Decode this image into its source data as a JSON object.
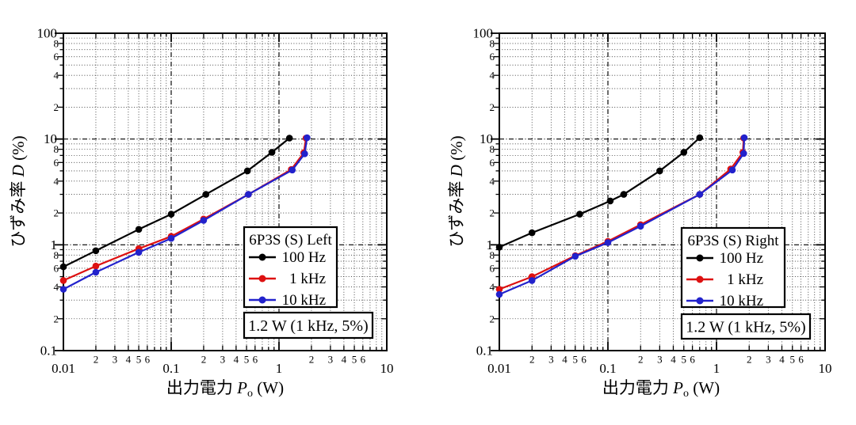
{
  "figure": {
    "background": "#ffffff",
    "axis_tick_labels": {
      "x_major": [
        "0.01",
        "0.1",
        "1",
        "10"
      ],
      "x_minor": [
        "2",
        "3",
        "4",
        "5",
        "6"
      ],
      "y_major": [
        "0.1",
        "1",
        "10",
        "100"
      ],
      "y_minor": [
        "2",
        "4",
        "6",
        "8"
      ]
    },
    "xlabel": {
      "cjk": "出力電力",
      "var": "P",
      "sub": "o",
      "unit": "(W)"
    },
    "ylabel": {
      "cjk": "ひずみ率",
      "var": "D",
      "unit": "(%)"
    },
    "series_colors": {
      "100hz": "#000000",
      "1khz": "#dd1111",
      "10khz": "#2222cc"
    }
  },
  "chart_data": [
    {
      "type": "line",
      "title": "6P3S (S) Left",
      "legend_title": "6P3S (S) Left",
      "annotation": "1.2 W (1 kHz, 5%)",
      "xlabel": "出力電力 Po (W)",
      "ylabel": "ひずみ率 D (%)",
      "xscale": "log",
      "yscale": "log",
      "xlim": [
        0.01,
        10
      ],
      "ylim": [
        0.1,
        100
      ],
      "grid": true,
      "legend_position": "lower right",
      "series": [
        {
          "name": "100 Hz",
          "color": "#000000",
          "points": [
            [
              0.01,
              0.62
            ],
            [
              0.02,
              0.88
            ],
            [
              0.05,
              1.4
            ],
            [
              0.1,
              1.95
            ],
            [
              0.21,
              3.0
            ],
            [
              0.51,
              5.0
            ],
            [
              0.86,
              7.5
            ],
            [
              1.25,
              10.2
            ]
          ]
        },
        {
          "name": "1 kHz",
          "color": "#dd1111",
          "points": [
            [
              0.01,
              0.46
            ],
            [
              0.02,
              0.63
            ],
            [
              0.05,
              0.92
            ],
            [
              0.1,
              1.2
            ],
            [
              0.2,
              1.75
            ],
            [
              0.52,
              3.0
            ],
            [
              1.3,
              5.15
            ],
            [
              1.7,
              7.4
            ],
            [
              1.78,
              10.2
            ]
          ]
        },
        {
          "name": "10 kHz",
          "color": "#2222cc",
          "points": [
            [
              0.01,
              0.38
            ],
            [
              0.02,
              0.55
            ],
            [
              0.05,
              0.85
            ],
            [
              0.1,
              1.15
            ],
            [
              0.2,
              1.7
            ],
            [
              0.52,
              3.0
            ],
            [
              1.33,
              5.1
            ],
            [
              1.73,
              7.25
            ],
            [
              1.82,
              10.3
            ]
          ]
        }
      ]
    },
    {
      "type": "line",
      "title": "6P3S (S) Right",
      "legend_title": "6P3S (S) Right",
      "annotation": "1.2 W (1 kHz, 5%)",
      "xlabel": "出力電力 Po (W)",
      "ylabel": "ひずみ率 D (%)",
      "xscale": "log",
      "yscale": "log",
      "xlim": [
        0.01,
        10
      ],
      "ylim": [
        0.1,
        100
      ],
      "grid": true,
      "legend_position": "lower right",
      "series": [
        {
          "name": "100 Hz",
          "color": "#000000",
          "points": [
            [
              0.01,
              0.95
            ],
            [
              0.02,
              1.3
            ],
            [
              0.055,
              1.95
            ],
            [
              0.105,
              2.6
            ],
            [
              0.14,
              3.0
            ],
            [
              0.3,
              5.0
            ],
            [
              0.5,
              7.5
            ],
            [
              0.7,
              10.3
            ]
          ]
        },
        {
          "name": "1 kHz",
          "color": "#dd1111",
          "points": [
            [
              0.01,
              0.38
            ],
            [
              0.02,
              0.5
            ],
            [
              0.05,
              0.79
            ],
            [
              0.1,
              1.08
            ],
            [
              0.2,
              1.55
            ],
            [
              0.7,
              3.0
            ],
            [
              1.35,
              5.2
            ],
            [
              1.75,
              7.5
            ],
            [
              1.78,
              10.2
            ]
          ]
        },
        {
          "name": "10 kHz",
          "color": "#2222cc",
          "points": [
            [
              0.01,
              0.34
            ],
            [
              0.02,
              0.46
            ],
            [
              0.05,
              0.78
            ],
            [
              0.1,
              1.05
            ],
            [
              0.2,
              1.5
            ],
            [
              0.7,
              3.0
            ],
            [
              1.4,
              5.1
            ],
            [
              1.78,
              7.3
            ],
            [
              1.8,
              10.3
            ]
          ]
        }
      ]
    }
  ]
}
